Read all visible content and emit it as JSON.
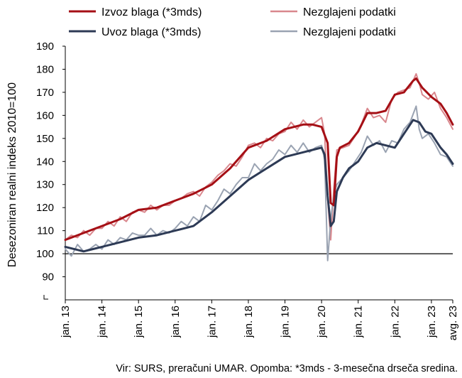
{
  "chart_data": {
    "type": "line",
    "title": "",
    "ylabel": "Desezoniran realni indeks 2010=100",
    "ylim": [
      80,
      190
    ],
    "y_ticks": [
      90,
      100,
      110,
      120,
      130,
      140,
      150,
      160,
      170,
      180,
      190
    ],
    "y_tick_labels": [
      "90",
      "100",
      "110",
      "120",
      "130",
      "140",
      "150",
      "160",
      "170",
      "180",
      "190"
    ],
    "x_ticks": [
      {
        "label": "jan. 13",
        "x": "2013-01"
      },
      {
        "label": "jan. 14",
        "x": "2014-01"
      },
      {
        "label": "jan. 15",
        "x": "2015-01"
      },
      {
        "label": "jan. 16",
        "x": "2016-01"
      },
      {
        "label": "jan. 17",
        "x": "2017-01"
      },
      {
        "label": "jan. 18",
        "x": "2018-01"
      },
      {
        "label": "jan. 19",
        "x": "2019-01"
      },
      {
        "label": "jan. 20",
        "x": "2020-01"
      },
      {
        "label": "jan. 21",
        "x": "2021-01"
      },
      {
        "label": "jan. 22",
        "x": "2022-01"
      },
      {
        "label": "jan. 23",
        "x": "2023-01"
      },
      {
        "label": "avg. 23",
        "x": "2023-08"
      }
    ],
    "xlim": [
      "2013-01",
      "2023-08"
    ],
    "reference_line": 100,
    "grid": false,
    "legend_position": "top",
    "series": [
      {
        "name": "Izvoz blaga (*3mds)",
        "color": "#a50f15",
        "style": "thick",
        "points": [
          [
            "2013-01",
            106
          ],
          [
            "2013-07",
            109
          ],
          [
            "2014-01",
            112
          ],
          [
            "2014-07",
            115
          ],
          [
            "2015-01",
            119
          ],
          [
            "2015-07",
            120
          ],
          [
            "2016-01",
            123
          ],
          [
            "2016-07",
            126
          ],
          [
            "2017-01",
            130
          ],
          [
            "2017-07",
            137
          ],
          [
            "2018-01",
            146
          ],
          [
            "2018-07",
            149
          ],
          [
            "2019-01",
            154
          ],
          [
            "2019-07",
            156
          ],
          [
            "2019-10",
            156
          ],
          [
            "2020-01",
            155
          ],
          [
            "2020-03",
            148
          ],
          [
            "2020-04",
            122
          ],
          [
            "2020-05",
            121
          ],
          [
            "2020-06",
            142
          ],
          [
            "2020-07",
            146
          ],
          [
            "2020-10",
            148
          ],
          [
            "2021-01",
            153
          ],
          [
            "2021-04",
            161
          ],
          [
            "2021-07",
            161
          ],
          [
            "2021-10",
            162
          ],
          [
            "2022-01",
            169
          ],
          [
            "2022-04",
            170
          ],
          [
            "2022-07",
            175
          ],
          [
            "2022-08",
            176
          ],
          [
            "2022-10",
            172
          ],
          [
            "2023-01",
            168
          ],
          [
            "2023-04",
            165
          ],
          [
            "2023-06",
            161
          ],
          [
            "2023-08",
            156
          ]
        ]
      },
      {
        "name": "Nezglajeni podatki",
        "color": "#d9878d",
        "style": "thin",
        "points": [
          [
            "2013-01",
            106
          ],
          [
            "2013-03",
            108
          ],
          [
            "2013-05",
            107
          ],
          [
            "2013-07",
            110
          ],
          [
            "2013-09",
            108
          ],
          [
            "2013-11",
            111
          ],
          [
            "2014-01",
            111
          ],
          [
            "2014-03",
            114
          ],
          [
            "2014-05",
            112
          ],
          [
            "2014-07",
            116
          ],
          [
            "2014-09",
            114
          ],
          [
            "2014-11",
            118
          ],
          [
            "2015-01",
            119
          ],
          [
            "2015-03",
            118
          ],
          [
            "2015-05",
            121
          ],
          [
            "2015-07",
            119
          ],
          [
            "2015-09",
            121
          ],
          [
            "2015-11",
            121
          ],
          [
            "2016-01",
            123
          ],
          [
            "2016-03",
            124
          ],
          [
            "2016-05",
            126
          ],
          [
            "2016-07",
            127
          ],
          [
            "2016-09",
            125
          ],
          [
            "2016-11",
            129
          ],
          [
            "2017-01",
            131
          ],
          [
            "2017-03",
            134
          ],
          [
            "2017-05",
            136
          ],
          [
            "2017-07",
            139
          ],
          [
            "2017-09",
            138
          ],
          [
            "2017-11",
            142
          ],
          [
            "2018-01",
            147
          ],
          [
            "2018-03",
            148
          ],
          [
            "2018-05",
            146
          ],
          [
            "2018-07",
            150
          ],
          [
            "2018-09",
            149
          ],
          [
            "2018-11",
            152
          ],
          [
            "2019-01",
            153
          ],
          [
            "2019-03",
            157
          ],
          [
            "2019-05",
            154
          ],
          [
            "2019-07",
            158
          ],
          [
            "2019-09",
            155
          ],
          [
            "2019-11",
            157
          ],
          [
            "2020-01",
            159
          ],
          [
            "2020-02",
            152
          ],
          [
            "2020-03",
            124
          ],
          [
            "2020-04",
            106
          ],
          [
            "2020-05",
            128
          ],
          [
            "2020-06",
            145
          ],
          [
            "2020-08",
            146
          ],
          [
            "2020-10",
            147
          ],
          [
            "2020-12",
            151
          ],
          [
            "2021-02",
            156
          ],
          [
            "2021-04",
            163
          ],
          [
            "2021-06",
            159
          ],
          [
            "2021-08",
            160
          ],
          [
            "2021-10",
            157
          ],
          [
            "2021-12",
            167
          ],
          [
            "2022-02",
            170
          ],
          [
            "2022-04",
            171
          ],
          [
            "2022-06",
            172
          ],
          [
            "2022-08",
            178
          ],
          [
            "2022-09",
            174
          ],
          [
            "2022-10",
            169
          ],
          [
            "2022-12",
            167
          ],
          [
            "2023-02",
            170
          ],
          [
            "2023-04",
            163
          ],
          [
            "2023-06",
            159
          ],
          [
            "2023-08",
            154
          ]
        ]
      },
      {
        "name": "Uvoz blaga (*3mds)",
        "color": "#2d3a55",
        "style": "thick",
        "points": [
          [
            "2013-01",
            103
          ],
          [
            "2013-07",
            101
          ],
          [
            "2014-01",
            103
          ],
          [
            "2014-07",
            105
          ],
          [
            "2015-01",
            107
          ],
          [
            "2015-07",
            108
          ],
          [
            "2016-01",
            110
          ],
          [
            "2016-07",
            112
          ],
          [
            "2017-01",
            118
          ],
          [
            "2017-07",
            125
          ],
          [
            "2018-01",
            132
          ],
          [
            "2018-07",
            137
          ],
          [
            "2019-01",
            142
          ],
          [
            "2019-07",
            144
          ],
          [
            "2019-10",
            145
          ],
          [
            "2020-01",
            146
          ],
          [
            "2020-02",
            143
          ],
          [
            "2020-03",
            125
          ],
          [
            "2020-04",
            112
          ],
          [
            "2020-05",
            114
          ],
          [
            "2020-06",
            127
          ],
          [
            "2020-08",
            133
          ],
          [
            "2020-10",
            137
          ],
          [
            "2021-01",
            140
          ],
          [
            "2021-04",
            146
          ],
          [
            "2021-07",
            148
          ],
          [
            "2021-10",
            147
          ],
          [
            "2022-01",
            146
          ],
          [
            "2022-04",
            152
          ],
          [
            "2022-07",
            158
          ],
          [
            "2022-09",
            157
          ],
          [
            "2022-11",
            153
          ],
          [
            "2023-01",
            152
          ],
          [
            "2023-04",
            146
          ],
          [
            "2023-06",
            143
          ],
          [
            "2023-08",
            139
          ]
        ]
      },
      {
        "name": "Nezglajeni podatki",
        "color": "#9aa3b2",
        "style": "thin",
        "points": [
          [
            "2013-01",
            102
          ],
          [
            "2013-03",
            99
          ],
          [
            "2013-05",
            104
          ],
          [
            "2013-07",
            101
          ],
          [
            "2013-09",
            102
          ],
          [
            "2013-11",
            104
          ],
          [
            "2014-01",
            102
          ],
          [
            "2014-03",
            106
          ],
          [
            "2014-05",
            104
          ],
          [
            "2014-07",
            107
          ],
          [
            "2014-09",
            106
          ],
          [
            "2014-11",
            109
          ],
          [
            "2015-01",
            108
          ],
          [
            "2015-03",
            108
          ],
          [
            "2015-05",
            111
          ],
          [
            "2015-07",
            108
          ],
          [
            "2015-09",
            110
          ],
          [
            "2015-11",
            109
          ],
          [
            "2016-01",
            111
          ],
          [
            "2016-03",
            114
          ],
          [
            "2016-05",
            112
          ],
          [
            "2016-07",
            116
          ],
          [
            "2016-09",
            114
          ],
          [
            "2016-11",
            121
          ],
          [
            "2017-01",
            119
          ],
          [
            "2017-03",
            123
          ],
          [
            "2017-05",
            128
          ],
          [
            "2017-07",
            126
          ],
          [
            "2017-09",
            130
          ],
          [
            "2017-11",
            133
          ],
          [
            "2018-01",
            133
          ],
          [
            "2018-03",
            139
          ],
          [
            "2018-05",
            136
          ],
          [
            "2018-07",
            139
          ],
          [
            "2018-09",
            141
          ],
          [
            "2018-11",
            145
          ],
          [
            "2019-01",
            143
          ],
          [
            "2019-03",
            147
          ],
          [
            "2019-05",
            144
          ],
          [
            "2019-07",
            148
          ],
          [
            "2019-09",
            144
          ],
          [
            "2019-11",
            146
          ],
          [
            "2020-01",
            147
          ],
          [
            "2020-02",
            141
          ],
          [
            "2020-03",
            97
          ],
          [
            "2020-04",
            115
          ],
          [
            "2020-05",
            125
          ],
          [
            "2020-06",
            130
          ],
          [
            "2020-08",
            133
          ],
          [
            "2020-10",
            136
          ],
          [
            "2020-12",
            140
          ],
          [
            "2021-02",
            144
          ],
          [
            "2021-04",
            151
          ],
          [
            "2021-06",
            147
          ],
          [
            "2021-08",
            149
          ],
          [
            "2021-10",
            144
          ],
          [
            "2021-12",
            149
          ],
          [
            "2022-02",
            148
          ],
          [
            "2022-04",
            154
          ],
          [
            "2022-06",
            157
          ],
          [
            "2022-08",
            164
          ],
          [
            "2022-09",
            154
          ],
          [
            "2022-10",
            150
          ],
          [
            "2022-12",
            152
          ],
          [
            "2023-02",
            148
          ],
          [
            "2023-04",
            143
          ],
          [
            "2023-06",
            142
          ],
          [
            "2023-08",
            138
          ]
        ]
      }
    ]
  },
  "footer": {
    "note": "Vir: SURS, preračuni UMAR. Opomba: *3mds - 3-mesečna drseča sredina."
  }
}
